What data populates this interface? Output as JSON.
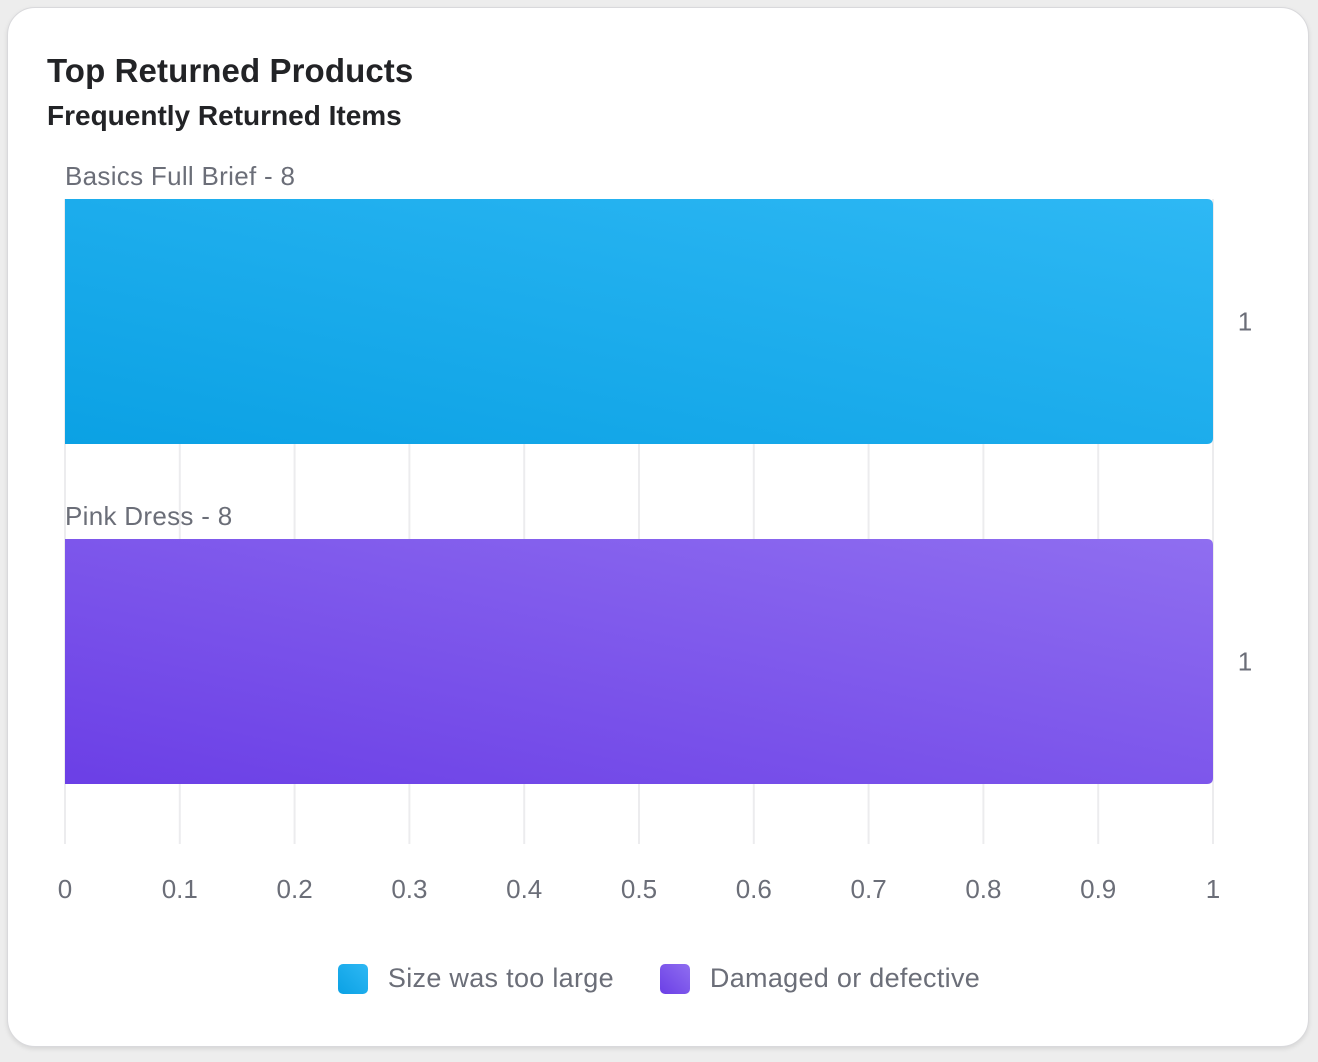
{
  "card": {
    "title": "Top Returned Products",
    "subtitle": "Frequently Returned Items"
  },
  "chart_data": {
    "type": "bar",
    "orientation": "horizontal",
    "title": "Top Returned Products",
    "subtitle": "Frequently Returned Items",
    "categories": [
      "Basics Full Brief - 8",
      "Pink Dress - 8"
    ],
    "values": [
      1,
      1
    ],
    "data_labels": [
      "1",
      "1"
    ],
    "bar_colors": [
      [
        "#0ba1e4",
        "#2eb8f4"
      ],
      [
        "#6b3fe6",
        "#8f6ef0"
      ]
    ],
    "xlim": [
      0,
      1
    ],
    "xticks": [
      "0",
      "0.1",
      "0.2",
      "0.3",
      "0.4",
      "0.5",
      "0.6",
      "0.7",
      "0.8",
      "0.9",
      "1"
    ],
    "grid": "vertical",
    "legend_position": "bottom",
    "legend": [
      {
        "label": "Size was too large",
        "color": "#1aa8ea"
      },
      {
        "label": "Damaged or defective",
        "color": "#7a52ec"
      }
    ]
  }
}
